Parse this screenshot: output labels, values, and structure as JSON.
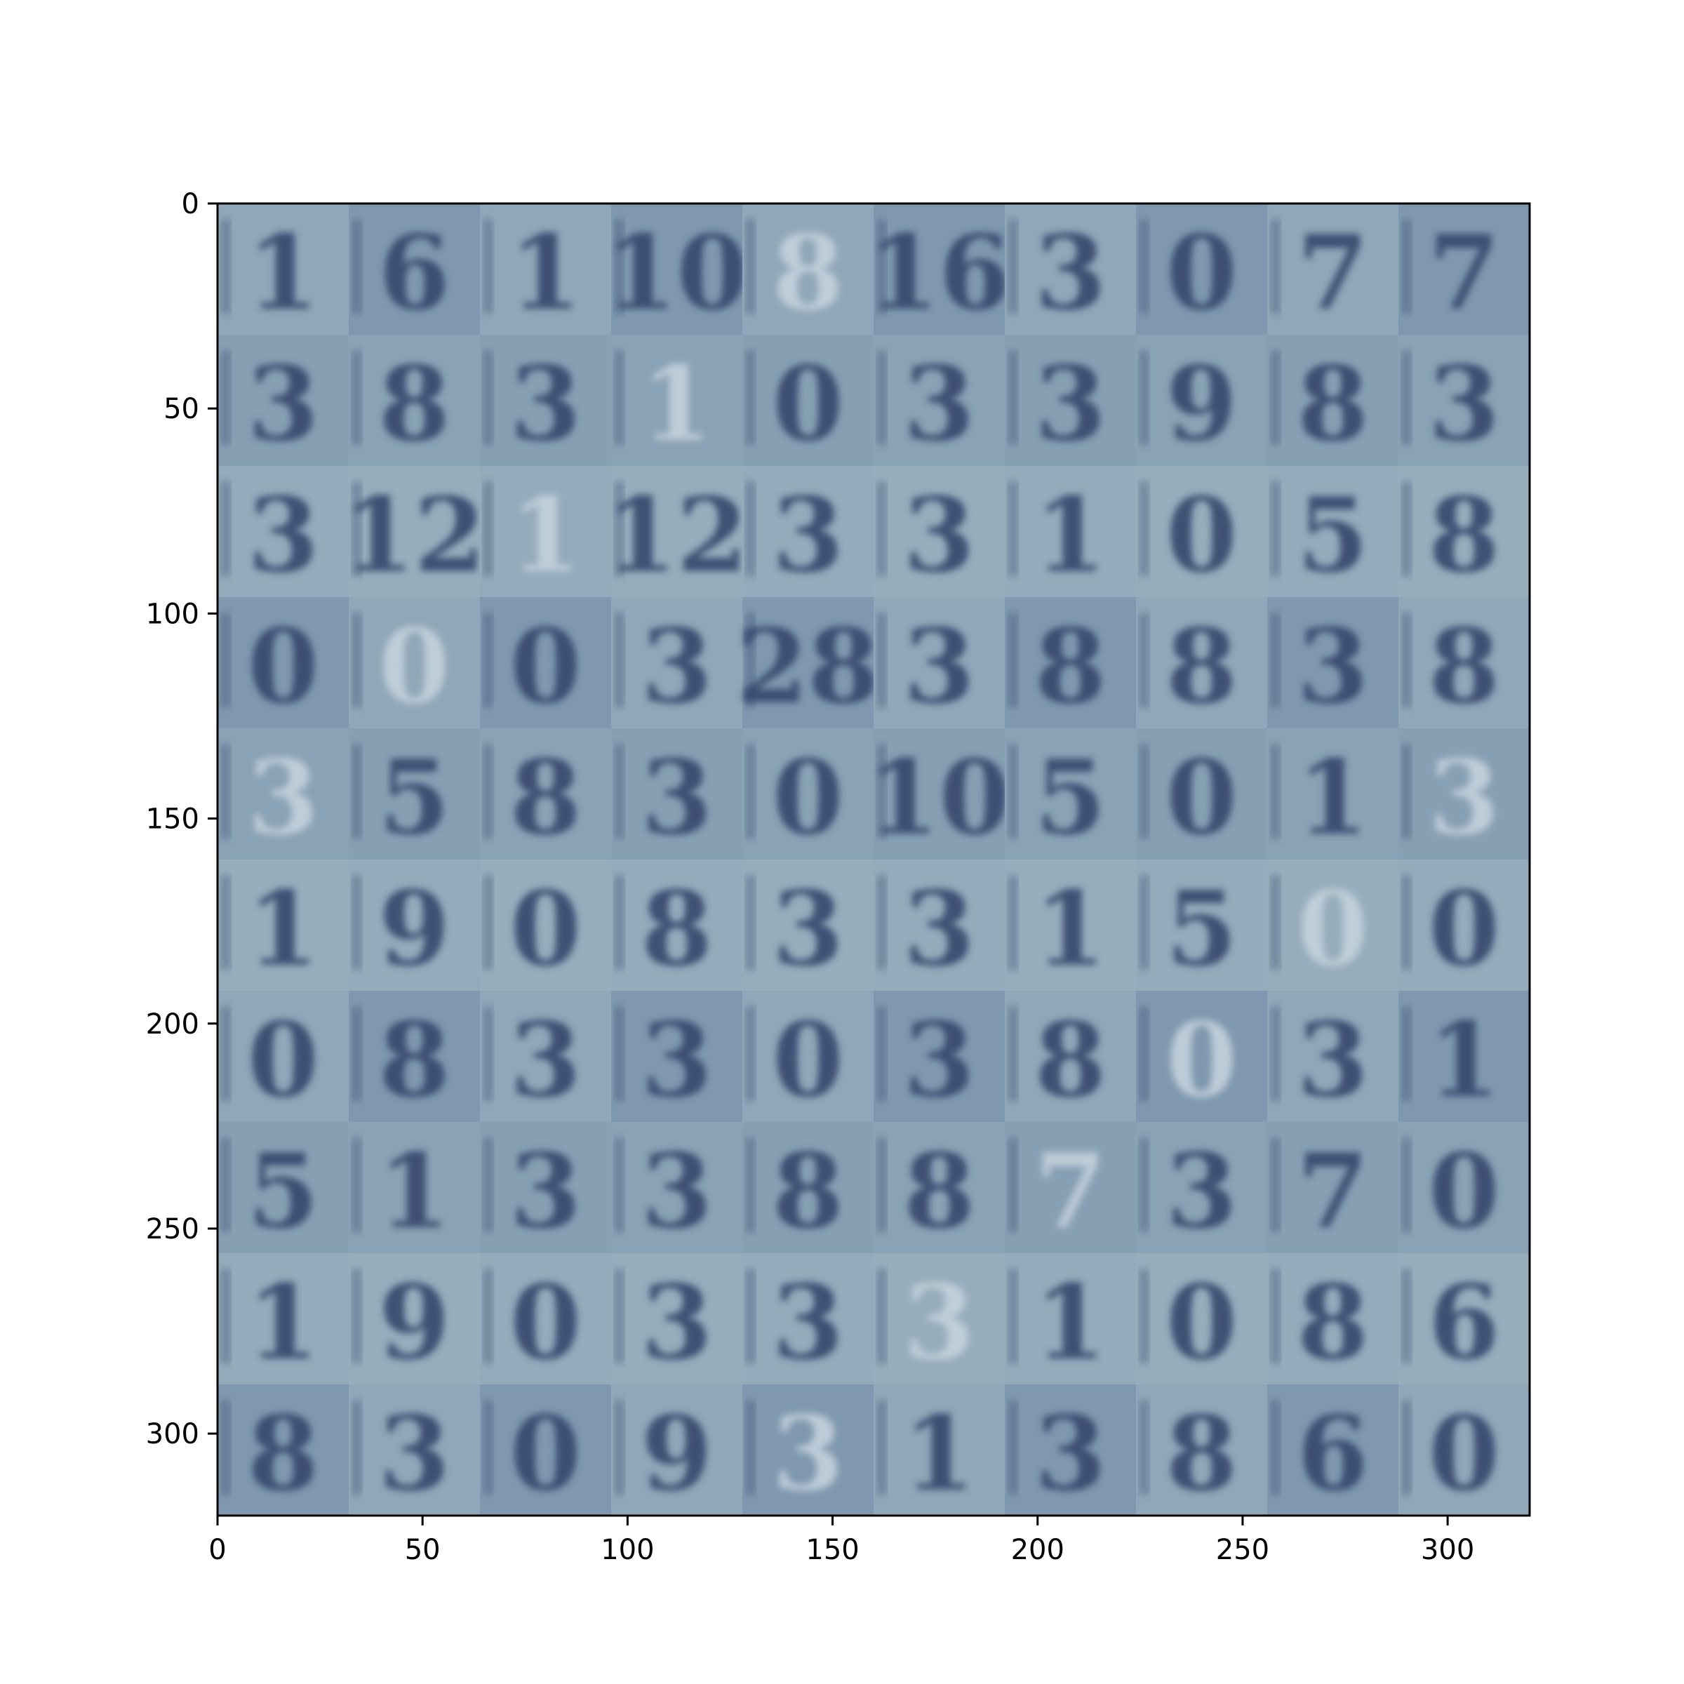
{
  "chart_data": {
    "type": "heatmap",
    "description_kind": "image-grid",
    "title": "",
    "xlabel": "",
    "ylabel": "",
    "xlim": [
      0,
      320
    ],
    "ylim": [
      320,
      0
    ],
    "x_ticks": [
      0,
      50,
      100,
      150,
      200,
      250,
      300
    ],
    "y_ticks": [
      0,
      50,
      100,
      150,
      200,
      250,
      300
    ],
    "grid": false,
    "grid_rows": 10,
    "grid_cols": 10,
    "tile_size": 32,
    "colormap": {
      "background": "#8ea6b7",
      "ink": "#34466d",
      "light": "#c4d2dc"
    },
    "tiles": [
      [
        "1",
        "6",
        "1",
        "10",
        "8",
        "16",
        "3",
        "0",
        "7",
        "7"
      ],
      [
        "3",
        "8",
        "3",
        "1",
        "0",
        "3",
        "3",
        "9",
        "8",
        "3"
      ],
      [
        "3",
        "12",
        "1",
        "12",
        "3",
        "3",
        "1",
        "0",
        "5",
        "8"
      ],
      [
        "0",
        "0",
        "0",
        "3",
        "28",
        "3",
        "8",
        "8",
        "3",
        "8"
      ],
      [
        "3",
        "5",
        "8",
        "3",
        "0",
        "10",
        "5",
        "0",
        "1",
        "3"
      ],
      [
        "1",
        "9",
        "0",
        "8",
        "3",
        "3",
        "1",
        "5",
        "0",
        "0"
      ],
      [
        "0",
        "8",
        "3",
        "3",
        "0",
        "3",
        "8",
        "0",
        "3",
        "1"
      ],
      [
        "5",
        "1",
        "3",
        "3",
        "8",
        "8",
        "7",
        "3",
        "7",
        "0"
      ],
      [
        "1",
        "9",
        "0",
        "3",
        "3",
        "3",
        "1",
        "0",
        "8",
        "6"
      ],
      [
        "8",
        "3",
        "0",
        "9",
        "3",
        "1",
        "3",
        "8",
        "6",
        "0"
      ]
    ]
  },
  "axes": {
    "x_tick_labels": [
      "0",
      "50",
      "100",
      "150",
      "200",
      "250",
      "300"
    ],
    "y_tick_labels": [
      "0",
      "50",
      "100",
      "150",
      "200",
      "250",
      "300"
    ]
  }
}
